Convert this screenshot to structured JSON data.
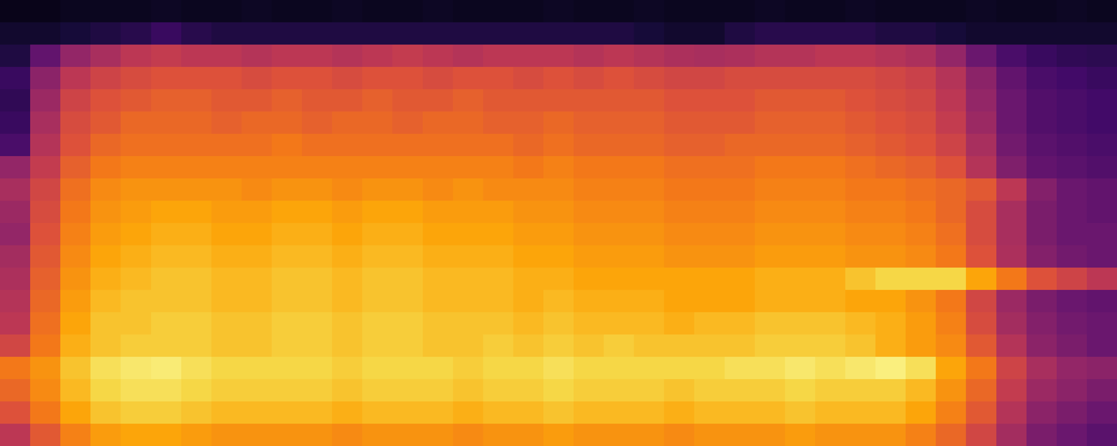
{
  "chart_data": {
    "type": "heatmap",
    "x": [
      0,
      1,
      2,
      3,
      4,
      5,
      6,
      7,
      8,
      9,
      10,
      11,
      12,
      13,
      14,
      15,
      16,
      17,
      18,
      19,
      20,
      21,
      22,
      23,
      24,
      25,
      26,
      27,
      28,
      29,
      30,
      31,
      32,
      33,
      34,
      35,
      36
    ],
    "y": [
      0,
      1,
      2,
      3,
      4,
      5,
      6,
      7,
      8,
      9,
      10,
      11,
      12,
      13,
      14,
      15,
      16,
      17,
      18,
      19
    ],
    "z": [
      [
        50,
        62,
        72,
        78,
        80,
        80,
        78,
        76,
        76,
        76,
        76,
        74,
        76,
        76,
        76,
        74,
        76,
        76,
        78,
        76,
        76,
        76,
        74,
        76,
        76,
        76,
        78,
        76,
        76,
        76,
        72,
        66,
        56,
        44,
        34,
        30,
        26
      ],
      [
        60,
        70,
        80,
        86,
        88,
        88,
        86,
        84,
        84,
        84,
        84,
        82,
        84,
        84,
        84,
        82,
        84,
        84,
        86,
        84,
        84,
        84,
        82,
        84,
        84,
        84,
        86,
        84,
        84,
        84,
        80,
        72,
        62,
        48,
        38,
        34,
        30
      ],
      [
        66,
        74,
        84,
        90,
        92,
        92,
        90,
        88,
        88,
        88,
        88,
        86,
        88,
        88,
        88,
        86,
        88,
        88,
        90,
        88,
        88,
        88,
        86,
        88,
        88,
        88,
        90,
        88,
        88,
        88,
        84,
        76,
        66,
        52,
        42,
        38,
        34
      ],
      [
        70,
        76,
        86,
        92,
        94,
        95,
        92,
        90,
        90,
        90,
        90,
        88,
        90,
        90,
        90,
        88,
        90,
        90,
        92,
        90,
        90,
        90,
        90,
        90,
        92,
        92,
        94,
        92,
        94,
        96,
        92,
        80,
        70,
        55,
        45,
        40,
        38
      ],
      [
        56,
        70,
        82,
        86,
        88,
        88,
        88,
        86,
        86,
        88,
        88,
        86,
        88,
        88,
        86,
        86,
        88,
        86,
        88,
        86,
        88,
        86,
        86,
        86,
        86,
        88,
        88,
        88,
        86,
        82,
        78,
        74,
        62,
        48,
        38,
        34,
        30
      ],
      [
        50,
        68,
        80,
        86,
        86,
        88,
        88,
        86,
        86,
        88,
        88,
        86,
        88,
        88,
        86,
        86,
        86,
        84,
        86,
        84,
        84,
        84,
        82,
        84,
        84,
        86,
        86,
        86,
        84,
        82,
        78,
        72,
        58,
        44,
        36,
        32,
        30
      ],
      [
        48,
        66,
        78,
        84,
        86,
        86,
        86,
        84,
        84,
        86,
        86,
        84,
        86,
        86,
        84,
        84,
        84,
        82,
        84,
        82,
        82,
        82,
        80,
        80,
        80,
        82,
        82,
        82,
        80,
        80,
        76,
        70,
        56,
        42,
        34,
        30,
        28
      ],
      [
        46,
        64,
        76,
        82,
        84,
        86,
        86,
        84,
        84,
        86,
        86,
        84,
        86,
        86,
        84,
        84,
        84,
        82,
        82,
        80,
        80,
        80,
        80,
        80,
        80,
        82,
        82,
        82,
        86,
        90,
        90,
        90,
        80,
        70,
        60,
        55,
        50
      ],
      [
        44,
        62,
        74,
        80,
        82,
        84,
        84,
        82,
        82,
        84,
        84,
        82,
        84,
        84,
        82,
        82,
        82,
        80,
        80,
        78,
        78,
        78,
        76,
        76,
        76,
        78,
        78,
        78,
        76,
        76,
        74,
        70,
        60,
        46,
        36,
        32,
        30
      ],
      [
        40,
        60,
        72,
        78,
        80,
        82,
        82,
        80,
        80,
        82,
        82,
        80,
        82,
        82,
        80,
        80,
        80,
        78,
        78,
        76,
        76,
        76,
        74,
        74,
        74,
        76,
        76,
        76,
        74,
        74,
        72,
        68,
        58,
        45,
        34,
        30,
        30
      ],
      [
        42,
        58,
        70,
        76,
        78,
        80,
        80,
        78,
        78,
        80,
        80,
        78,
        80,
        80,
        78,
        78,
        78,
        76,
        76,
        74,
        74,
        74,
        72,
        72,
        72,
        74,
        74,
        74,
        72,
        72,
        70,
        66,
        58,
        45,
        34,
        30,
        28
      ],
      [
        45,
        56,
        68,
        74,
        76,
        76,
        76,
        76,
        74,
        76,
        76,
        74,
        76,
        76,
        74,
        76,
        74,
        74,
        74,
        72,
        72,
        72,
        70,
        70,
        70,
        72,
        72,
        72,
        70,
        70,
        68,
        66,
        62,
        50,
        36,
        30,
        28
      ],
      [
        40,
        52,
        64,
        70,
        72,
        72,
        72,
        72,
        72,
        72,
        72,
        72,
        72,
        72,
        72,
        72,
        72,
        70,
        72,
        70,
        70,
        70,
        68,
        68,
        68,
        70,
        70,
        70,
        68,
        66,
        64,
        60,
        48,
        35,
        28,
        26,
        24
      ],
      [
        22,
        48,
        60,
        66,
        68,
        68,
        68,
        68,
        68,
        70,
        68,
        68,
        68,
        68,
        68,
        68,
        68,
        66,
        68,
        66,
        66,
        66,
        64,
        64,
        66,
        66,
        66,
        66,
        64,
        62,
        60,
        55,
        45,
        32,
        26,
        24,
        22
      ],
      [
        18,
        45,
        58,
        62,
        66,
        66,
        66,
        64,
        66,
        66,
        64,
        66,
        66,
        64,
        66,
        66,
        64,
        64,
        66,
        64,
        64,
        64,
        62,
        62,
        62,
        64,
        64,
        64,
        62,
        60,
        58,
        52,
        42,
        30,
        24,
        22,
        20
      ],
      [
        16,
        42,
        55,
        60,
        62,
        64,
        64,
        62,
        62,
        64,
        62,
        62,
        64,
        62,
        62,
        64,
        62,
        62,
        62,
        62,
        62,
        62,
        60,
        60,
        60,
        62,
        62,
        62,
        60,
        58,
        56,
        50,
        40,
        30,
        24,
        22,
        20
      ],
      [
        18,
        38,
        50,
        55,
        58,
        60,
        60,
        60,
        58,
        60,
        60,
        58,
        60,
        60,
        58,
        60,
        60,
        58,
        60,
        58,
        60,
        58,
        56,
        56,
        58,
        58,
        58,
        58,
        58,
        56,
        54,
        48,
        38,
        28,
        22,
        20,
        18
      ],
      [
        12,
        28,
        40,
        45,
        50,
        52,
        50,
        50,
        48,
        50,
        50,
        48,
        50,
        52,
        50,
        48,
        50,
        50,
        50,
        48,
        50,
        48,
        46,
        45,
        46,
        48,
        48,
        50,
        50,
        48,
        46,
        40,
        30,
        22,
        18,
        16,
        15
      ],
      [
        8,
        8,
        10,
        12,
        14,
        18,
        14,
        12,
        12,
        12,
        12,
        12,
        12,
        12,
        12,
        12,
        12,
        12,
        12,
        12,
        12,
        10,
        8,
        8,
        12,
        14,
        14,
        14,
        14,
        12,
        12,
        10,
        8,
        8,
        8,
        8,
        8
      ],
      [
        4,
        4,
        5,
        5,
        5,
        6,
        5,
        5,
        6,
        5,
        5,
        6,
        5,
        5,
        6,
        5,
        5,
        5,
        6,
        5,
        5,
        6,
        5,
        5,
        5,
        6,
        5,
        5,
        6,
        5,
        5,
        5,
        6,
        5,
        5,
        6,
        5
      ]
    ],
    "xlim": [
      -0.5,
      36.5
    ],
    "ylim": [
      -0.5,
      19.5
    ],
    "zlim": [
      0,
      100
    ],
    "tick_labels": false,
    "grid": false
  }
}
